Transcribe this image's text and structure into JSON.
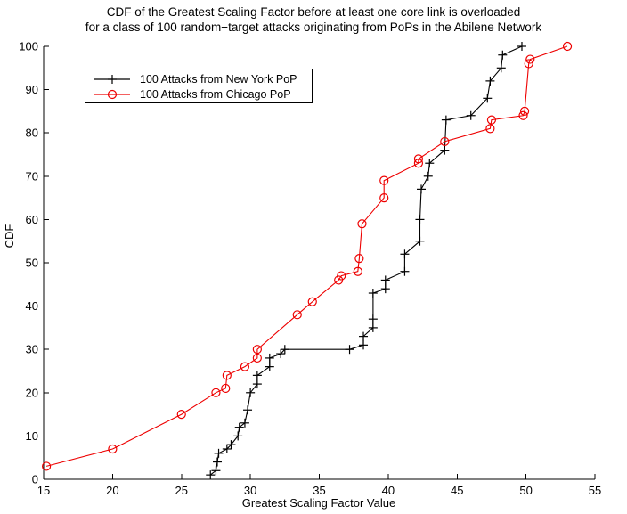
{
  "title": {
    "line1": "CDF of the Greatest Scaling Factor before at least one core link is overloaded",
    "line2": "for a class of 100 random−target attacks originating from PoPs in the Abilene Network"
  },
  "axes": {
    "xlabel": "Greatest Scaling Factor Value",
    "ylabel": "CDF",
    "x_ticks": [
      15,
      20,
      25,
      30,
      35,
      40,
      45,
      50,
      55
    ],
    "y_ticks": [
      0,
      10,
      20,
      30,
      40,
      50,
      60,
      70,
      80,
      90,
      100
    ],
    "xlim": [
      15,
      55
    ],
    "ylim": [
      0,
      100
    ]
  },
  "legend": {
    "items": [
      {
        "label": "100 Attacks from New York PoP",
        "color": "#000000",
        "marker": "plus"
      },
      {
        "label": "100 Attacks from Chicago PoP",
        "color": "#ee0000",
        "marker": "circle"
      }
    ]
  },
  "chart_data": {
    "type": "line",
    "title": "CDF of the Greatest Scaling Factor before at least one core link is overloaded for a class of 100 random−target attacks originating from PoPs in the Abilene Network",
    "xlabel": "Greatest Scaling Factor Value",
    "ylabel": "CDF",
    "xlim": [
      15,
      55
    ],
    "ylim": [
      0,
      100
    ],
    "x_ticks": [
      15,
      20,
      25,
      30,
      35,
      40,
      45,
      50,
      55
    ],
    "y_ticks": [
      0,
      10,
      20,
      30,
      40,
      50,
      60,
      70,
      80,
      90,
      100
    ],
    "grid": false,
    "legend_position": "upper-left",
    "series": [
      {
        "name": "100 Attacks from New York PoP",
        "color": "#000000",
        "marker": "plus",
        "points": [
          [
            27.1,
            1
          ],
          [
            27.5,
            2
          ],
          [
            27.6,
            4
          ],
          [
            27.7,
            6
          ],
          [
            28.3,
            7
          ],
          [
            28.6,
            8
          ],
          [
            29.1,
            10
          ],
          [
            29.2,
            12
          ],
          [
            29.6,
            13
          ],
          [
            29.8,
            16
          ],
          [
            30.0,
            20
          ],
          [
            30.5,
            22
          ],
          [
            30.5,
            24
          ],
          [
            31.4,
            26
          ],
          [
            31.4,
            28
          ],
          [
            32.2,
            29
          ],
          [
            32.5,
            30
          ],
          [
            37.2,
            30
          ],
          [
            38.2,
            31
          ],
          [
            38.2,
            33
          ],
          [
            38.9,
            35
          ],
          [
            38.9,
            37
          ],
          [
            38.9,
            43
          ],
          [
            39.8,
            44
          ],
          [
            39.8,
            46
          ],
          [
            41.2,
            48
          ],
          [
            41.2,
            52
          ],
          [
            42.3,
            55
          ],
          [
            42.3,
            60
          ],
          [
            42.4,
            67
          ],
          [
            42.9,
            70
          ],
          [
            43.0,
            73
          ],
          [
            44.1,
            76
          ],
          [
            44.2,
            83
          ],
          [
            46.0,
            84
          ],
          [
            47.2,
            88
          ],
          [
            47.4,
            92
          ],
          [
            48.2,
            95
          ],
          [
            48.3,
            98
          ],
          [
            49.7,
            100
          ]
        ]
      },
      {
        "name": "100 Attacks from Chicago PoP",
        "color": "#ee0000",
        "marker": "circle",
        "points": [
          [
            15.2,
            3
          ],
          [
            20.0,
            7
          ],
          [
            25.0,
            15
          ],
          [
            27.5,
            20
          ],
          [
            28.2,
            21
          ],
          [
            28.3,
            24
          ],
          [
            29.6,
            26
          ],
          [
            30.5,
            28
          ],
          [
            30.5,
            30
          ],
          [
            33.4,
            38
          ],
          [
            34.5,
            41
          ],
          [
            36.4,
            46
          ],
          [
            36.6,
            47
          ],
          [
            37.8,
            48
          ],
          [
            37.9,
            51
          ],
          [
            38.1,
            59
          ],
          [
            39.7,
            65
          ],
          [
            39.7,
            69
          ],
          [
            42.2,
            73
          ],
          [
            42.2,
            74
          ],
          [
            44.1,
            78
          ],
          [
            47.4,
            81
          ],
          [
            47.5,
            83
          ],
          [
            49.8,
            84
          ],
          [
            49.9,
            85
          ],
          [
            50.2,
            96
          ],
          [
            50.3,
            97
          ],
          [
            53.0,
            100
          ]
        ]
      }
    ]
  }
}
